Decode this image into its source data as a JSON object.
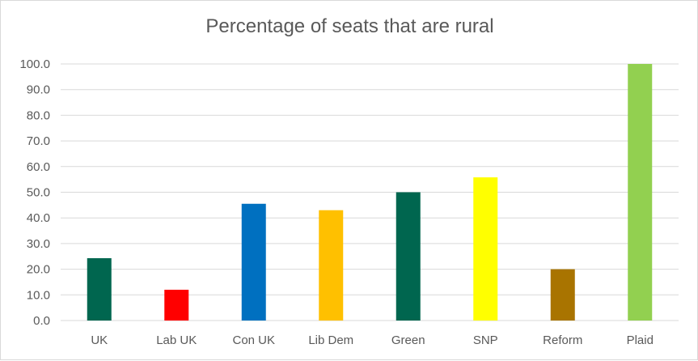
{
  "chart_data": {
    "type": "bar",
    "title": "Percentage of seats that are rural",
    "xlabel": "",
    "ylabel": "",
    "categories": [
      "UK",
      "Lab UK",
      "Con UK",
      "Lib Dem",
      "Green",
      "SNP",
      "Reform",
      "Plaid"
    ],
    "values": [
      24.3,
      12.0,
      45.5,
      43.0,
      50.0,
      55.8,
      20.0,
      100.0
    ],
    "colors": [
      "#00664f",
      "#ff0000",
      "#0070c0",
      "#ffc000",
      "#00664f",
      "#ffff00",
      "#a97400",
      "#92d050"
    ],
    "ylim": [
      0,
      100
    ],
    "y_ticks": [
      "0.0",
      "10.0",
      "20.0",
      "30.0",
      "40.0",
      "50.0",
      "60.0",
      "70.0",
      "80.0",
      "90.0",
      "100.0"
    ],
    "grid": true,
    "legend": "none"
  }
}
